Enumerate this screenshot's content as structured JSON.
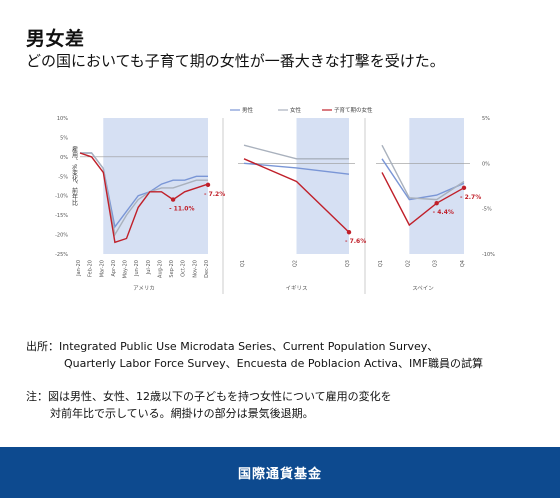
{
  "header": {
    "title": "男女差",
    "subtitle": "どの国においても子育て期の女性が一番大きな打撃を受けた。"
  },
  "chart_data": [
    {
      "type": "line",
      "region": "アメリカ",
      "ylabel": "雇用、%変化、前年比",
      "ylim": [
        -25,
        10
      ],
      "yticks": [
        "10%",
        "5%",
        "0%",
        "-5%",
        "-10%",
        "-15%",
        "-20%",
        "-25%"
      ],
      "x": [
        "Jan-20",
        "Feb-20",
        "Mar-20",
        "Apr-20",
        "May-20",
        "Jun-20",
        "Jul-20",
        "Aug-20",
        "Sep-20",
        "Oct-20",
        "Nov-20",
        "Dec-20"
      ],
      "shade_range": [
        "Mar-20",
        "Dec-20"
      ],
      "series": [
        {
          "name": "男性",
          "color": "#7a96d6",
          "values": [
            1,
            1,
            -3,
            -18,
            -14,
            -10,
            -9,
            -7,
            -6,
            -6,
            -5,
            -5
          ]
        },
        {
          "name": "女性",
          "color": "#a9b1bd",
          "values": [
            1,
            1,
            -3,
            -20,
            -15,
            -11,
            -9,
            -8,
            -8,
            -7,
            -6,
            -6
          ]
        },
        {
          "name": "子育て期の女性",
          "color": "#c0202a",
          "values": [
            1,
            0,
            -4,
            -22,
            -21,
            -13,
            -9,
            -9,
            -11,
            -9,
            -8,
            -7
          ]
        }
      ],
      "annotations": [
        {
          "x": "Sep-20",
          "value": -11.0,
          "label": "- 11.0%"
        },
        {
          "x": "Dec-20",
          "value": -7.2,
          "label": "- 7.2%"
        }
      ]
    },
    {
      "type": "line",
      "region": "イギリス",
      "x": [
        "Q1",
        "Q2",
        "Q3"
      ],
      "shade_range": [
        "Q2",
        "Q3"
      ],
      "series": [
        {
          "name": "男性",
          "color": "#7a96d6",
          "values": [
            0,
            -0.5,
            -1.2
          ]
        },
        {
          "name": "女性",
          "color": "#a9b1bd",
          "values": [
            2,
            0.5,
            0.5
          ]
        },
        {
          "name": "子育て期の女性",
          "color": "#c0202a",
          "values": [
            0.5,
            -2,
            -7.6
          ]
        }
      ],
      "annotations": [
        {
          "x": "Q3",
          "value": -7.6,
          "label": "- 7.6%"
        }
      ]
    },
    {
      "type": "line",
      "region": "スペイン",
      "ylim": [
        -10,
        5
      ],
      "yticks": [
        "5%",
        "0%",
        "-5%",
        "-10%"
      ],
      "x": [
        "Q1",
        "Q2",
        "Q3",
        "Q4"
      ],
      "shade_range": [
        "Q2",
        "Q4"
      ],
      "series": [
        {
          "name": "男性",
          "color": "#7a96d6",
          "values": [
            0.5,
            -4,
            -3.5,
            -2.2
          ]
        },
        {
          "name": "女性",
          "color": "#a9b1bd",
          "values": [
            2,
            -3.8,
            -4,
            -2
          ]
        },
        {
          "name": "子育て期の女性",
          "color": "#c0202a",
          "values": [
            -1,
            -6.8,
            -4.4,
            -2.7
          ]
        }
      ],
      "annotations": [
        {
          "x": "Q3",
          "value": -4.4,
          "label": "- 4.4%"
        },
        {
          "x": "Q4",
          "value": -2.7,
          "label": "- 2.7%"
        }
      ]
    }
  ],
  "legend": [
    "男性",
    "女性",
    "子育て期の女性"
  ],
  "source": {
    "line1": "出所：Integrated Public Use Microdata Series、Current Population Survey、",
    "line2": "Quarterly Labor Force Survey、Encuesta de Poblacion Activa、IMF職員の試算"
  },
  "note": {
    "line1": "注：図は男性、女性、12歳以下の子どもを持つ女性について雇用の変化を",
    "line2": "対前年比で示している。網掛けの部分は景気後退期。"
  },
  "footer": {
    "org": "国際通貨基金"
  }
}
